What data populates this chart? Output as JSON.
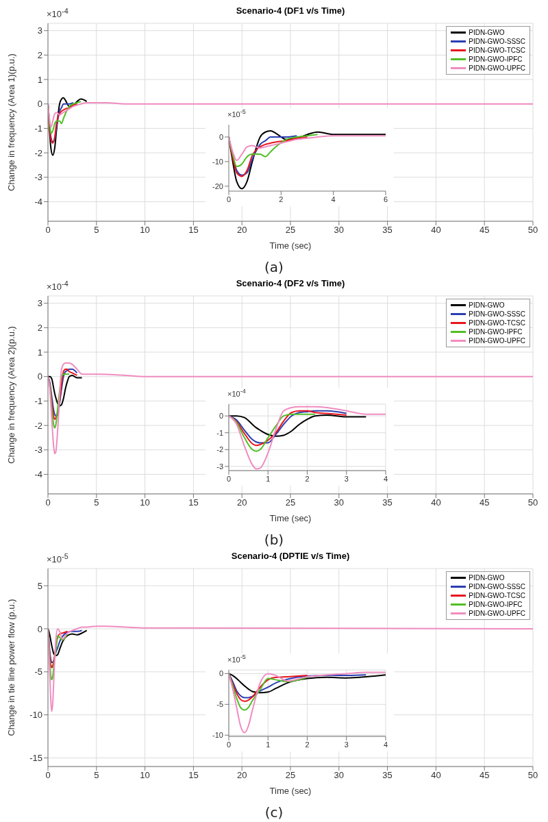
{
  "chart_data": [
    {
      "type": "line",
      "title": "Scenario-4 (DF1 v/s Time)",
      "xlabel": "Time (sec)",
      "ylabel": "Change in frequency (Area 1)(p.u.)",
      "annotations": [
        "×10$^{-4}$",
        "(a)"
      ],
      "x": [
        0,
        0.15,
        0.3,
        0.5,
        0.7,
        0.9,
        1.2,
        1.4,
        1.6,
        1.8,
        2.2,
        2.6,
        3,
        3.4,
        4,
        5,
        6,
        8,
        10,
        50
      ],
      "xlim": [
        0,
        50
      ],
      "xticks": [
        0,
        5,
        10,
        15,
        20,
        25,
        30,
        35,
        40,
        45,
        50
      ],
      "ylim": [
        -4.8,
        3.3
      ],
      "yticks": [
        -4,
        -3,
        -2,
        -1,
        0,
        1,
        2,
        3
      ],
      "grid": true,
      "legend": "top right",
      "series": [
        {
          "name": "PIDN-GWO",
          "color": "#000000",
          "values": [
            0,
            -1,
            -1.8,
            -2.1,
            -1.8,
            -1,
            0,
            0.2,
            0.25,
            0.15,
            -0.1,
            -0.05,
            0.1,
            0.2,
            0.1,
            null,
            null,
            null,
            null,
            null
          ]
        },
        {
          "name": "PIDN-GWO-SSSC",
          "color": "#2a3eb1",
          "values": [
            0,
            -0.75,
            -1.35,
            -1.55,
            -1.45,
            -0.9,
            -0.3,
            -0.15,
            0,
            0,
            0,
            0.05,
            null,
            null,
            null,
            null,
            null,
            null,
            null,
            null
          ]
        },
        {
          "name": "PIDN-GWO-TCSC",
          "color": "#e8141c",
          "values": [
            0,
            -0.85,
            -1.45,
            -1.6,
            -1.35,
            -0.75,
            -0.4,
            -0.3,
            -0.25,
            -0.2,
            -0.15,
            -0.05,
            0,
            null,
            null,
            null,
            null,
            null,
            null,
            null
          ]
        },
        {
          "name": "PIDN-GWO-IPFC",
          "color": "#4fbf26",
          "values": [
            0,
            -0.7,
            -1.2,
            -1.1,
            -0.8,
            -0.7,
            -0.7,
            -0.8,
            -0.6,
            -0.4,
            -0.1,
            0,
            0.05,
            0.1,
            null,
            null,
            null,
            null,
            null,
            null
          ]
        },
        {
          "name": "PIDN-GWO-UPFC",
          "color": "#f08cc0",
          "values": [
            0,
            -0.6,
            -0.95,
            -0.7,
            -0.4,
            -0.35,
            -0.45,
            -0.4,
            -0.35,
            -0.3,
            -0.2,
            -0.1,
            -0.05,
            0,
            0.05,
            0.05,
            0.05,
            0,
            0,
            0
          ]
        }
      ]
    },
    {
      "type": "line",
      "annotations": [
        "×10$^{-5}$"
      ],
      "x": [
        0,
        0.15,
        0.3,
        0.5,
        0.7,
        0.9,
        1.2,
        1.4,
        1.6,
        1.8,
        2.2,
        2.6,
        3,
        3.4,
        4,
        5,
        6
      ],
      "xlim": [
        0,
        6
      ],
      "xticks": [
        0,
        2,
        4,
        6
      ],
      "ylim": [
        -22,
        5
      ],
      "yticks": [
        -20,
        -10,
        0
      ],
      "series": [
        {
          "color": "#000000",
          "values": [
            0,
            -10,
            -18,
            -21,
            -18,
            -10,
            0,
            2,
            2.5,
            1.5,
            -1,
            -0.5,
            1,
            2,
            1,
            1,
            1
          ]
        },
        {
          "color": "#2a3eb1",
          "values": [
            0,
            -7.5,
            -13.5,
            -15.5,
            -14.5,
            -9,
            -3,
            -1.5,
            0,
            0,
            0,
            0.5,
            null,
            null,
            null,
            null,
            null
          ]
        },
        {
          "color": "#e8141c",
          "values": [
            0,
            -8.5,
            -14.5,
            -16,
            -13.5,
            -7.5,
            -4,
            -3,
            -2.5,
            -2,
            -1.5,
            -0.5,
            0,
            null,
            null,
            null,
            null
          ]
        },
        {
          "color": "#4fbf26",
          "values": [
            0,
            -7,
            -12,
            -11,
            -8,
            -7,
            -7,
            -8,
            -6,
            -4,
            -1,
            0,
            0.5,
            1,
            null,
            null,
            null
          ]
        },
        {
          "color": "#f08cc0",
          "values": [
            0,
            -6,
            -9.5,
            -7,
            -4,
            -3.5,
            -4.5,
            -4,
            -3.5,
            -3,
            -2,
            -1,
            -0.5,
            0,
            0.5,
            0.5,
            0.5
          ]
        }
      ]
    },
    {
      "type": "line",
      "title": "Scenario-4 (DF2 v/s Time)",
      "xlabel": "Time (sec)",
      "ylabel": "Change in frequency (Area 2)(p.u.)",
      "annotations": [
        "×10$^{-4}$",
        "(b)"
      ],
      "x": [
        0,
        0.2,
        0.4,
        0.6,
        0.7,
        0.8,
        1,
        1.2,
        1.4,
        1.6,
        1.8,
        2,
        2.2,
        2.5,
        3,
        3.5,
        4,
        5,
        8,
        10,
        50
      ],
      "xlim": [
        0,
        50
      ],
      "xticks": [
        0,
        5,
        10,
        15,
        20,
        25,
        30,
        35,
        40,
        45,
        50
      ],
      "ylim": [
        -4.8,
        3.3
      ],
      "yticks": [
        -4,
        -3,
        -2,
        -1,
        0,
        1,
        2,
        3
      ],
      "grid": true,
      "legend": "top right",
      "series": [
        {
          "name": "PIDN-GWO",
          "color": "#000000",
          "values": [
            0,
            0,
            -0.1,
            -0.5,
            -0.7,
            -0.85,
            -1.1,
            -1.2,
            -1.15,
            -0.9,
            -0.5,
            -0.2,
            0,
            0.05,
            -0.05,
            -0.05,
            null,
            null,
            null,
            null,
            null
          ]
        },
        {
          "name": "PIDN-GWO-SSSC",
          "color": "#2a3eb1",
          "values": [
            0,
            -0.25,
            -0.85,
            -1.4,
            -1.55,
            -1.6,
            -1.6,
            -1.1,
            -0.5,
            0,
            0.2,
            0.25,
            0.3,
            0.3,
            0.15,
            null,
            null,
            null,
            null,
            null,
            null
          ]
        },
        {
          "name": "PIDN-GWO-TCSC",
          "color": "#e8141c",
          "values": [
            0,
            -0.35,
            -1.05,
            -1.65,
            -1.75,
            -1.7,
            -1.45,
            -1,
            -0.3,
            0.2,
            0.3,
            0.3,
            0.2,
            0.15,
            0.05,
            null,
            null,
            null,
            null,
            null,
            null
          ]
        },
        {
          "name": "PIDN-GWO-IPFC",
          "color": "#4fbf26",
          "values": [
            0,
            -0.4,
            -1.3,
            -2,
            -2.1,
            -2,
            -1.3,
            -0.6,
            0,
            0.1,
            0.1,
            0.1,
            0.1,
            null,
            null,
            null,
            null,
            null,
            null,
            null,
            null
          ]
        },
        {
          "name": "PIDN-GWO-UPFC",
          "color": "#f08cc0",
          "values": [
            0,
            -0.5,
            -1.8,
            -2.9,
            -3.15,
            -3.1,
            -2.2,
            -0.8,
            0.3,
            0.5,
            0.55,
            0.55,
            0.55,
            0.5,
            0.3,
            0.1,
            0.1,
            0.1,
            0.05,
            0,
            0
          ]
        }
      ]
    },
    {
      "type": "line",
      "annotations": [
        "×10$^{-4}$"
      ],
      "x": [
        0,
        0.2,
        0.4,
        0.6,
        0.7,
        0.8,
        1,
        1.2,
        1.4,
        1.6,
        1.8,
        2,
        2.2,
        2.5,
        3,
        3.5,
        4
      ],
      "xlim": [
        0,
        4
      ],
      "xticks": [
        0,
        1,
        2,
        3,
        4
      ],
      "ylim": [
        -3.25,
        0.7
      ],
      "yticks": [
        -3,
        -2,
        -1,
        0
      ],
      "grid": true,
      "series": [
        {
          "color": "#000000",
          "values": [
            0,
            0,
            -0.1,
            -0.5,
            -0.7,
            -0.85,
            -1.1,
            -1.2,
            -1.15,
            -0.9,
            -0.5,
            -0.2,
            0,
            0.05,
            -0.05,
            -0.05,
            null
          ]
        },
        {
          "color": "#2a3eb1",
          "values": [
            0,
            -0.25,
            -0.85,
            -1.4,
            -1.55,
            -1.6,
            -1.6,
            -1.1,
            -0.5,
            0,
            0.2,
            0.25,
            0.3,
            0.3,
            0.15,
            null,
            null
          ]
        },
        {
          "color": "#e8141c",
          "values": [
            0,
            -0.35,
            -1.05,
            -1.65,
            -1.75,
            -1.7,
            -1.45,
            -1,
            -0.3,
            0.2,
            0.3,
            0.3,
            0.2,
            0.15,
            0.05,
            null,
            null
          ]
        },
        {
          "color": "#4fbf26",
          "values": [
            0,
            -0.4,
            -1.3,
            -2,
            -2.1,
            -2,
            -1.3,
            -0.6,
            0,
            0.1,
            0.1,
            0.1,
            0.1,
            null,
            null,
            null,
            null
          ]
        },
        {
          "color": "#f08cc0",
          "values": [
            0,
            -0.5,
            -1.8,
            -2.9,
            -3.15,
            -3.1,
            -2.2,
            -0.8,
            0.3,
            0.5,
            0.55,
            0.55,
            0.55,
            0.5,
            0.3,
            0.1,
            0.1
          ]
        }
      ]
    },
    {
      "type": "line",
      "title": "Scenario-4 (DPTIE v/s Time)",
      "xlabel": "Time (sec)",
      "ylabel": "Change in tie line power flow (p.u.)",
      "annotations": [
        "×10$^{-5}$",
        "(c)"
      ],
      "x": [
        0,
        0.1,
        0.2,
        0.3,
        0.4,
        0.5,
        0.6,
        0.8,
        1,
        1.2,
        1.5,
        2,
        2.5,
        3,
        3.5,
        4,
        5,
        6,
        8,
        10,
        50
      ],
      "xlim": [
        0,
        50
      ],
      "xticks": [
        0,
        5,
        10,
        15,
        20,
        25,
        30,
        35,
        40,
        45,
        50
      ],
      "ylim": [
        -16,
        7
      ],
      "yticks": [
        -15,
        -10,
        -5,
        0,
        5
      ],
      "grid": true,
      "legend": "top right",
      "series": [
        {
          "name": "PIDN-GWO",
          "color": "#000000",
          "values": [
            0,
            -0.3,
            -0.8,
            -1.4,
            -2,
            -2.5,
            -2.9,
            -3.1,
            -3,
            -2.4,
            -1.5,
            -0.8,
            -0.6,
            -0.7,
            -0.5,
            -0.2,
            null,
            null,
            null,
            null,
            null
          ]
        },
        {
          "name": "PIDN-GWO-SSSC",
          "color": "#2a3eb1",
          "values": [
            0,
            -1.3,
            -2.8,
            -3.6,
            -3.9,
            -3.9,
            -3.7,
            -2.8,
            -2.2,
            -1.5,
            -0.9,
            -0.4,
            -0.3,
            -0.3,
            -0.2,
            null,
            null,
            null,
            null,
            null,
            null
          ]
        },
        {
          "name": "PIDN-GWO-TCSC",
          "color": "#e8141c",
          "values": [
            0,
            -1.7,
            -3.2,
            -4.2,
            -4.5,
            -4.3,
            -3.8,
            -2.2,
            -1,
            -0.6,
            -0.5,
            -0.3,
            null,
            null,
            null,
            null,
            null,
            null,
            null,
            null,
            null
          ]
        },
        {
          "name": "PIDN-GWO-IPFC",
          "color": "#4fbf26",
          "values": [
            0,
            -2,
            -4,
            -5.5,
            -5.9,
            -5.5,
            -4.4,
            -2.6,
            -0.8,
            -1,
            -1.3,
            -0.6,
            null,
            null,
            null,
            null,
            null,
            null,
            null,
            null,
            null
          ]
        },
        {
          "name": "PIDN-GWO-UPFC",
          "color": "#f08cc0",
          "values": [
            0,
            -2.5,
            -5.5,
            -8.5,
            -9.6,
            -8.5,
            -6,
            -1.5,
            0,
            -0.3,
            -1.2,
            -0.5,
            -0.2,
            0,
            0.2,
            0.2,
            0.3,
            0.3,
            0.2,
            0.1,
            0
          ]
        }
      ]
    },
    {
      "type": "line",
      "annotations": [
        "×10$^{-5}$"
      ],
      "x": [
        0,
        0.1,
        0.2,
        0.3,
        0.4,
        0.5,
        0.6,
        0.8,
        1,
        1.2,
        1.5,
        2,
        2.5,
        3,
        3.5,
        4
      ],
      "xlim": [
        0,
        4
      ],
      "xticks": [
        0,
        1,
        2,
        3,
        4
      ],
      "ylim": [
        -10.2,
        0.6
      ],
      "yticks": [
        -10,
        -5,
        0
      ],
      "grid": true,
      "series": [
        {
          "color": "#000000",
          "values": [
            0,
            -0.3,
            -0.8,
            -1.4,
            -2,
            -2.5,
            -2.9,
            -3.1,
            -3,
            -2.4,
            -1.5,
            -0.8,
            -0.6,
            -0.7,
            -0.5,
            -0.2
          ]
        },
        {
          "color": "#2a3eb1",
          "values": [
            0,
            -1.3,
            -2.8,
            -3.6,
            -3.9,
            -3.9,
            -3.7,
            -2.8,
            -2.2,
            -1.5,
            -0.9,
            -0.4,
            -0.3,
            -0.3,
            -0.2,
            null
          ]
        },
        {
          "color": "#e8141c",
          "values": [
            0,
            -1.7,
            -3.2,
            -4.2,
            -4.5,
            -4.3,
            -3.8,
            -2.2,
            -1,
            -0.6,
            -0.5,
            -0.3,
            null,
            null,
            null,
            null
          ]
        },
        {
          "color": "#4fbf26",
          "values": [
            0,
            -2,
            -4,
            -5.5,
            -5.9,
            -5.5,
            -4.4,
            -2.6,
            -0.8,
            -1,
            -1.3,
            -0.6,
            null,
            null,
            null,
            null
          ]
        },
        {
          "color": "#f08cc0",
          "values": [
            0,
            -2.5,
            -5.5,
            -8.5,
            -9.6,
            -8.5,
            -6,
            -1.5,
            0,
            -0.3,
            -1.2,
            -0.5,
            -0.2,
            0,
            0.2,
            0.2
          ]
        }
      ]
    }
  ]
}
